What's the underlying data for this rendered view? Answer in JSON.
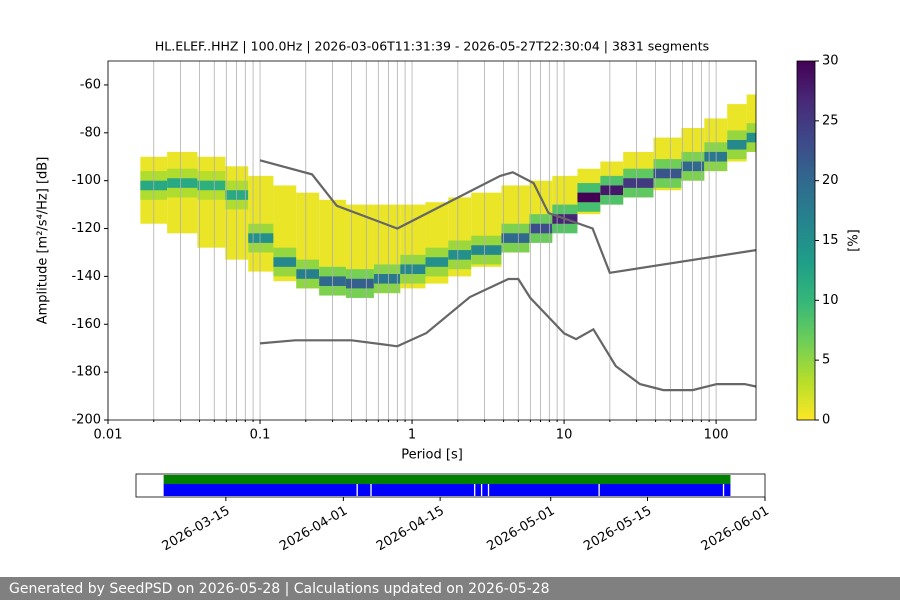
{
  "chart_data": [
    {
      "type": "ppsd",
      "title": "HL.ELEF..HHZ | 100.0Hz | 2026-03-06T11:31:39 - 2026-05-27T22:30:04 | 3831 segments",
      "xlabel": "Period [s]",
      "ylabel": "Amplitude [m²/s⁴/Hz] [dB]",
      "log_x": true,
      "grid": true,
      "xlim": [
        0.01,
        183
      ],
      "ylim": [
        -200,
        -50
      ],
      "xticks": [
        0.01,
        0.1,
        1,
        10,
        100
      ],
      "xminor": [
        0.02,
        0.03,
        0.04,
        0.05,
        0.06,
        0.07,
        0.08,
        0.09,
        0.2,
        0.3,
        0.4,
        0.5,
        0.6,
        0.7,
        0.8,
        0.9,
        2,
        3,
        4,
        5,
        6,
        7,
        8,
        9,
        20,
        30,
        40,
        50,
        60,
        70,
        80,
        90
      ],
      "yticks": [
        -200,
        -180,
        -160,
        -140,
        -120,
        -100,
        -80,
        -60
      ],
      "colorbar": {
        "label": "[%]",
        "lim": [
          0,
          30
        ],
        "ticks": [
          0,
          5,
          10,
          15,
          20,
          25,
          30
        ]
      },
      "density": {
        "x": [
          0.02,
          0.03,
          0.05,
          0.07,
          0.1,
          0.15,
          0.2,
          0.3,
          0.45,
          0.7,
          1,
          1.5,
          2,
          3,
          5,
          7,
          10,
          15,
          20,
          30,
          50,
          70,
          100,
          140,
          180
        ],
        "low": [
          -118,
          -122,
          -128,
          -133,
          -138,
          -142,
          -145,
          -147,
          -147,
          -147,
          -145,
          -143,
          -140,
          -136,
          -130,
          -125,
          -120,
          -114,
          -110,
          -107,
          -104,
          -100,
          -96,
          -92,
          -88
        ],
        "high": [
          -90,
          -88,
          -90,
          -94,
          -98,
          -102,
          -105,
          -108,
          -110,
          -110,
          -110,
          -109,
          -107,
          -105,
          -102,
          -100,
          -98,
          -95,
          -92,
          -88,
          -82,
          -78,
          -74,
          -68,
          -64
        ],
        "mode": [
          -102,
          -101,
          -102,
          -106,
          -124,
          -134,
          -139,
          -142,
          -143,
          -141,
          -137,
          -134,
          -131,
          -129,
          -124,
          -120,
          -116,
          -107,
          -104,
          -101,
          -97,
          -94,
          -90,
          -85,
          -82
        ],
        "peak": [
          12,
          12,
          11,
          12,
          15,
          16,
          17,
          20,
          21,
          18,
          16,
          15,
          15,
          16,
          20,
          23,
          27,
          30,
          28,
          25,
          22,
          20,
          18,
          16,
          15
        ]
      },
      "series": [
        {
          "color": "#666666",
          "x": [
            0.1,
            0.22,
            0.32,
            0.8,
            3.8,
            4.6,
            6.3,
            7.9,
            15.4,
            20,
            183
          ],
          "values": [
            -91.5,
            -97.4,
            -110.5,
            -120,
            -98,
            -96.5,
            -101,
            -113.5,
            -120,
            -138.5,
            -129
          ]
        },
        {
          "color": "#666666",
          "x": [
            0.1,
            0.17,
            0.4,
            0.8,
            1.24,
            2.4,
            4.3,
            5,
            6,
            10,
            12,
            15.6,
            21.9,
            31.6,
            45,
            70,
            101,
            154,
            183
          ],
          "values": [
            -168,
            -166.7,
            -166.7,
            -169.2,
            -163.7,
            -148.6,
            -141.1,
            -141.1,
            -149,
            -163.8,
            -166.2,
            -162.1,
            -177.5,
            -185,
            -187.5,
            -187.5,
            -185,
            -185,
            -186
          ]
        }
      ]
    },
    {
      "type": "timeline",
      "xlim": [
        "2026-03-02",
        "2026-06-01"
      ],
      "xticks": [
        "2026-03-15",
        "2026-04-01",
        "2026-04-15",
        "2026-05-01",
        "2026-05-15",
        "2026-06-01"
      ],
      "series": [
        {
          "color": "#008000",
          "start": "2026-03-06",
          "end": "2026-05-27",
          "gaps": []
        },
        {
          "color": "#0000ff",
          "start": "2026-03-06",
          "end": "2026-05-27",
          "gaps": [
            "2026-04-03",
            "2026-04-05",
            "2026-04-20",
            "2026-04-21",
            "2026-04-22",
            "2026-05-08",
            "2026-05-26"
          ]
        }
      ]
    }
  ],
  "footer": "Generated by SeedPSD on 2026-05-28 | Calculations updated on 2026-05-28"
}
